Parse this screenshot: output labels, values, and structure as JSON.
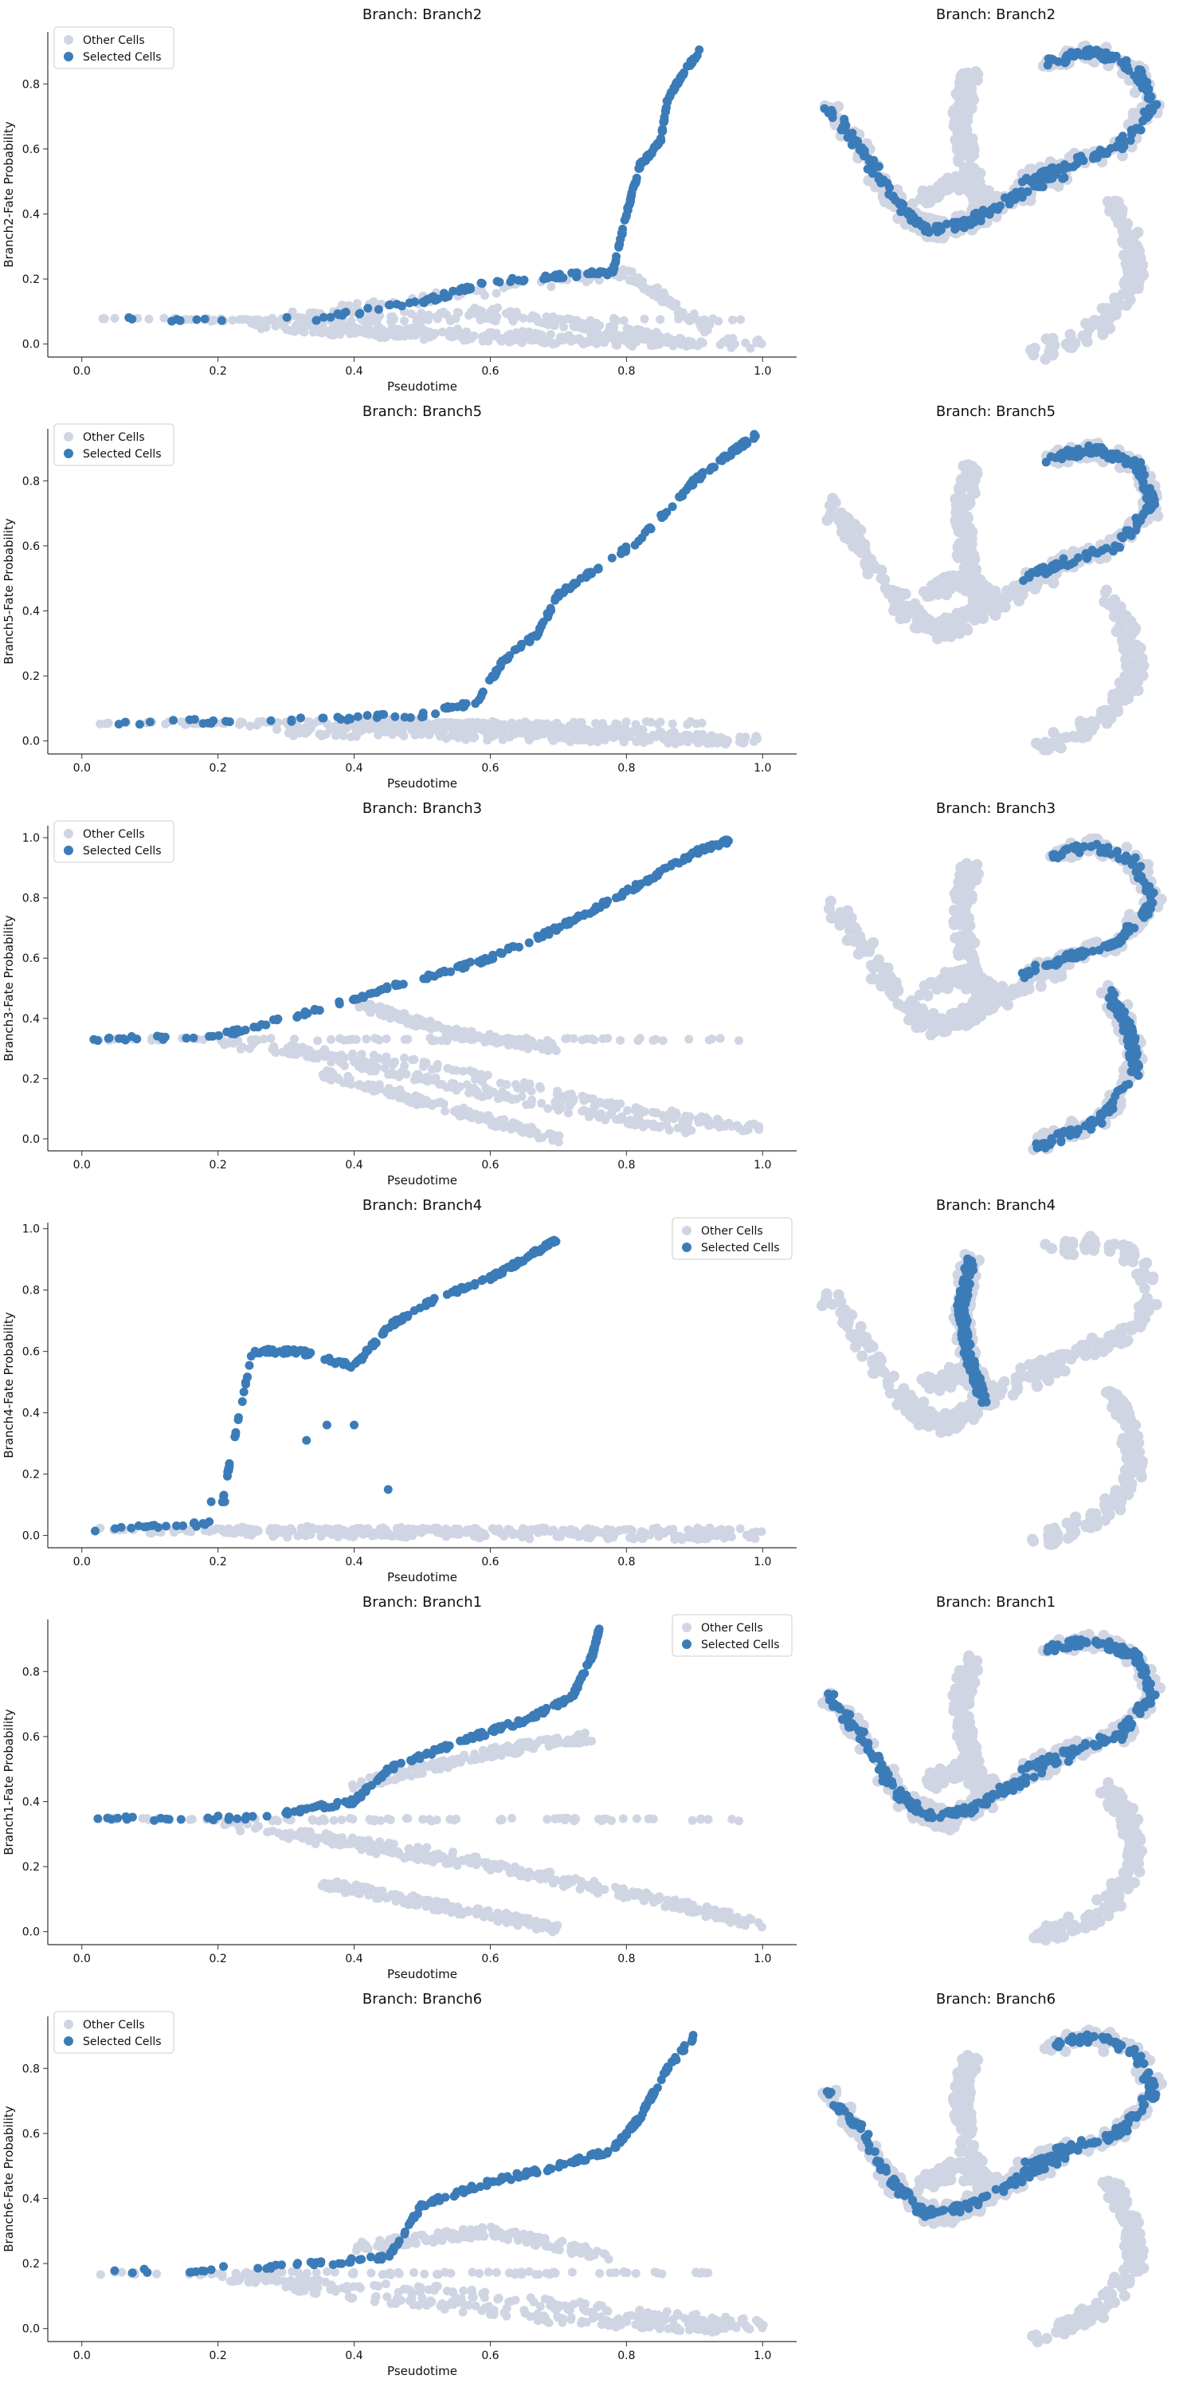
{
  "colors": {
    "other": "#d0d5e3",
    "selected": "#3b7cb8",
    "axis": "#333333",
    "text": "#111111"
  },
  "legend_labels": [
    "Other Cells",
    "Selected Cells"
  ],
  "chart_data": [
    {
      "type": "scatter",
      "title": "Branch: Branch2",
      "xlabel": "Pseudotime",
      "ylabel": "Branch2-Fate Probability",
      "xlim": [
        -0.05,
        1.05
      ],
      "ylim": [
        -0.04,
        0.96
      ],
      "xticks": [
        {
          "v": 0,
          "label": "0.0"
        },
        {
          "v": 0.2,
          "label": "0.2"
        },
        {
          "v": 0.4,
          "label": "0.4"
        },
        {
          "v": 0.6,
          "label": "0.6"
        },
        {
          "v": 0.8,
          "label": "0.8"
        },
        {
          "v": 1.0,
          "label": "1.0"
        }
      ],
      "yticks": [
        {
          "v": 0,
          "label": "0.0"
        },
        {
          "v": 0.2,
          "label": "0.2"
        },
        {
          "v": 0.4,
          "label": "0.4"
        },
        {
          "v": 0.6,
          "label": "0.6"
        },
        {
          "v": 0.8,
          "label": "0.8"
        }
      ],
      "legend": "upper-left",
      "grid": false,
      "base": 0.075,
      "other_tracks": [
        [
          [
            0.25,
            0.07
          ],
          [
            0.8,
            0.22
          ],
          [
            0.92,
            0.05
          ]
        ],
        [
          [
            0.25,
            0.06
          ],
          [
            0.6,
            0.1
          ],
          [
            0.85,
            0.02
          ]
        ],
        [
          [
            0.3,
            0.05
          ],
          [
            1.0,
            0.0
          ]
        ],
        [
          [
            0.35,
            0.04
          ],
          [
            0.9,
            0.0
          ]
        ]
      ],
      "selected_track": [
        [
          0.01,
          0.075
        ],
        [
          0.35,
          0.08
        ],
        [
          0.5,
          0.13
        ],
        [
          0.6,
          0.19
        ],
        [
          0.7,
          0.21
        ],
        [
          0.78,
          0.22
        ],
        [
          0.8,
          0.4
        ],
        [
          0.82,
          0.55
        ],
        [
          0.85,
          0.62
        ],
        [
          0.86,
          0.75
        ],
        [
          0.88,
          0.82
        ],
        [
          0.91,
          0.91
        ]
      ]
    },
    {
      "type": "scatter",
      "title": "Branch: Branch5",
      "xlabel": "Pseudotime",
      "ylabel": "Branch5-Fate Probability",
      "xlim": [
        -0.05,
        1.05
      ],
      "ylim": [
        -0.04,
        0.96
      ],
      "xticks": [
        {
          "v": 0,
          "label": "0.0"
        },
        {
          "v": 0.2,
          "label": "0.2"
        },
        {
          "v": 0.4,
          "label": "0.4"
        },
        {
          "v": 0.6,
          "label": "0.6"
        },
        {
          "v": 0.8,
          "label": "0.8"
        },
        {
          "v": 1.0,
          "label": "1.0"
        }
      ],
      "yticks": [
        {
          "v": 0,
          "label": "0.0"
        },
        {
          "v": 0.2,
          "label": "0.2"
        },
        {
          "v": 0.4,
          "label": "0.4"
        },
        {
          "v": 0.6,
          "label": "0.6"
        },
        {
          "v": 0.8,
          "label": "0.8"
        }
      ],
      "legend": "upper-left",
      "grid": false,
      "base": 0.055,
      "other_tracks": [
        [
          [
            0.25,
            0.05
          ],
          [
            0.7,
            0.04
          ],
          [
            0.95,
            0.0
          ]
        ],
        [
          [
            0.3,
            0.03
          ],
          [
            1.0,
            0.0
          ]
        ],
        [
          [
            0.4,
            0.06
          ],
          [
            0.8,
            0.02
          ]
        ]
      ],
      "selected_track": [
        [
          0.01,
          0.055
        ],
        [
          0.3,
          0.065
        ],
        [
          0.5,
          0.08
        ],
        [
          0.58,
          0.12
        ],
        [
          0.62,
          0.25
        ],
        [
          0.67,
          0.33
        ],
        [
          0.7,
          0.45
        ],
        [
          0.75,
          0.52
        ],
        [
          0.82,
          0.62
        ],
        [
          0.9,
          0.8
        ],
        [
          0.95,
          0.88
        ],
        [
          0.99,
          0.94
        ]
      ]
    },
    {
      "type": "scatter",
      "title": "Branch: Branch3",
      "xlabel": "Pseudotime",
      "ylabel": "Branch3-Fate Probability",
      "xlim": [
        -0.05,
        1.05
      ],
      "ylim": [
        -0.04,
        1.04
      ],
      "xticks": [
        {
          "v": 0,
          "label": "0.0"
        },
        {
          "v": 0.2,
          "label": "0.2"
        },
        {
          "v": 0.4,
          "label": "0.4"
        },
        {
          "v": 0.6,
          "label": "0.6"
        },
        {
          "v": 0.8,
          "label": "0.8"
        },
        {
          "v": 1.0,
          "label": "1.0"
        }
      ],
      "yticks": [
        {
          "v": 0,
          "label": "0.0"
        },
        {
          "v": 0.2,
          "label": "0.2"
        },
        {
          "v": 0.4,
          "label": "0.4"
        },
        {
          "v": 0.6,
          "label": "0.6"
        },
        {
          "v": 0.8,
          "label": "0.8"
        },
        {
          "v": 1.0,
          "label": "1.0"
        }
      ],
      "legend": "upper-left",
      "grid": false,
      "base": 0.33,
      "other_tracks": [
        [
          [
            0.2,
            0.32
          ],
          [
            0.5,
            0.25
          ],
          [
            0.8,
            0.1
          ],
          [
            1.0,
            0.03
          ]
        ],
        [
          [
            0.3,
            0.3
          ],
          [
            0.6,
            0.15
          ],
          [
            0.9,
            0.02
          ]
        ],
        [
          [
            0.35,
            0.22
          ],
          [
            0.7,
            0.0
          ]
        ],
        [
          [
            0.4,
            0.45
          ],
          [
            0.55,
            0.35
          ],
          [
            0.7,
            0.3
          ]
        ]
      ],
      "selected_track": [
        [
          0.01,
          0.33
        ],
        [
          0.2,
          0.34
        ],
        [
          0.3,
          0.4
        ],
        [
          0.45,
          0.5
        ],
        [
          0.6,
          0.6
        ],
        [
          0.7,
          0.7
        ],
        [
          0.8,
          0.82
        ],
        [
          0.9,
          0.95
        ],
        [
          0.95,
          0.99
        ]
      ]
    },
    {
      "type": "scatter",
      "title": "Branch: Branch4",
      "xlabel": "Pseudotime",
      "ylabel": "Branch4-Fate Probability",
      "xlim": [
        -0.05,
        1.05
      ],
      "ylim": [
        -0.04,
        1.02
      ],
      "xticks": [
        {
          "v": 0,
          "label": "0.0"
        },
        {
          "v": 0.2,
          "label": "0.2"
        },
        {
          "v": 0.4,
          "label": "0.4"
        },
        {
          "v": 0.6,
          "label": "0.6"
        },
        {
          "v": 0.8,
          "label": "0.8"
        },
        {
          "v": 1.0,
          "label": "1.0"
        }
      ],
      "yticks": [
        {
          "v": 0,
          "label": "0.0"
        },
        {
          "v": 0.2,
          "label": "0.2"
        },
        {
          "v": 0.4,
          "label": "0.4"
        },
        {
          "v": 0.6,
          "label": "0.6"
        },
        {
          "v": 0.8,
          "label": "0.8"
        },
        {
          "v": 1.0,
          "label": "1.0"
        }
      ],
      "legend": "upper-right",
      "grid": false,
      "base": 0.02,
      "other_tracks": [
        [
          [
            0.1,
            0.02
          ],
          [
            1.0,
            0.0
          ]
        ],
        [
          [
            0.2,
            0.01
          ],
          [
            0.95,
            0.0
          ]
        ]
      ],
      "selected_track": [
        [
          0.01,
          0.02
        ],
        [
          0.2,
          0.04
        ],
        [
          0.25,
          0.6
        ],
        [
          0.32,
          0.6
        ],
        [
          0.4,
          0.55
        ],
        [
          0.45,
          0.68
        ],
        [
          0.5,
          0.75
        ],
        [
          0.6,
          0.84
        ],
        [
          0.65,
          0.9
        ],
        [
          0.7,
          0.97
        ]
      ],
      "selected_extra": [
        [
          0.33,
          0.31
        ],
        [
          0.36,
          0.36
        ],
        [
          0.4,
          0.36
        ],
        [
          0.45,
          0.15
        ],
        [
          0.19,
          0.11
        ],
        [
          0.21,
          0.11
        ]
      ]
    },
    {
      "type": "scatter",
      "title": "Branch: Branch1",
      "xlabel": "Pseudotime",
      "ylabel": "Branch1-Fate Probability",
      "xlim": [
        -0.05,
        1.05
      ],
      "ylim": [
        -0.04,
        0.96
      ],
      "xticks": [
        {
          "v": 0,
          "label": "0.0"
        },
        {
          "v": 0.2,
          "label": "0.2"
        },
        {
          "v": 0.4,
          "label": "0.4"
        },
        {
          "v": 0.6,
          "label": "0.6"
        },
        {
          "v": 0.8,
          "label": "0.8"
        },
        {
          "v": 1.0,
          "label": "1.0"
        }
      ],
      "yticks": [
        {
          "v": 0,
          "label": "0.0"
        },
        {
          "v": 0.2,
          "label": "0.2"
        },
        {
          "v": 0.4,
          "label": "0.4"
        },
        {
          "v": 0.6,
          "label": "0.6"
        },
        {
          "v": 0.8,
          "label": "0.8"
        }
      ],
      "legend": "upper-right",
      "grid": false,
      "base": 0.345,
      "other_tracks": [
        [
          [
            0.2,
            0.33
          ],
          [
            0.5,
            0.25
          ],
          [
            0.8,
            0.12
          ],
          [
            1.0,
            0.02
          ]
        ],
        [
          [
            0.3,
            0.3
          ],
          [
            0.6,
            0.2
          ],
          [
            0.95,
            0.05
          ]
        ],
        [
          [
            0.35,
            0.15
          ],
          [
            0.7,
            0.01
          ]
        ],
        [
          [
            0.4,
            0.45
          ],
          [
            0.6,
            0.55
          ],
          [
            0.75,
            0.6
          ]
        ]
      ],
      "selected_track": [
        [
          0.01,
          0.345
        ],
        [
          0.25,
          0.35
        ],
        [
          0.4,
          0.4
        ],
        [
          0.45,
          0.5
        ],
        [
          0.55,
          0.58
        ],
        [
          0.65,
          0.65
        ],
        [
          0.72,
          0.72
        ],
        [
          0.75,
          0.85
        ],
        [
          0.76,
          0.93
        ]
      ]
    },
    {
      "type": "scatter",
      "title": "Branch: Branch6",
      "xlabel": "Pseudotime",
      "ylabel": "Branch6-Fate Probability",
      "xlim": [
        -0.05,
        1.05
      ],
      "ylim": [
        -0.04,
        0.96
      ],
      "xticks": [
        {
          "v": 0,
          "label": "0.0"
        },
        {
          "v": 0.2,
          "label": "0.2"
        },
        {
          "v": 0.4,
          "label": "0.4"
        },
        {
          "v": 0.6,
          "label": "0.6"
        },
        {
          "v": 0.8,
          "label": "0.8"
        },
        {
          "v": 1.0,
          "label": "1.0"
        }
      ],
      "yticks": [
        {
          "v": 0,
          "label": "0.0"
        },
        {
          "v": 0.2,
          "label": "0.2"
        },
        {
          "v": 0.4,
          "label": "0.4"
        },
        {
          "v": 0.6,
          "label": "0.6"
        },
        {
          "v": 0.8,
          "label": "0.8"
        }
      ],
      "legend": "upper-left",
      "grid": false,
      "base": 0.17,
      "other_tracks": [
        [
          [
            0.2,
            0.16
          ],
          [
            0.5,
            0.12
          ],
          [
            0.8,
            0.05
          ],
          [
            1.0,
            0.01
          ]
        ],
        [
          [
            0.3,
            0.13
          ],
          [
            0.7,
            0.03
          ],
          [
            0.95,
            0.0
          ]
        ],
        [
          [
            0.4,
            0.25
          ],
          [
            0.6,
            0.3
          ],
          [
            0.78,
            0.22
          ]
        ]
      ],
      "selected_track": [
        [
          0.01,
          0.17
        ],
        [
          0.3,
          0.19
        ],
        [
          0.45,
          0.22
        ],
        [
          0.5,
          0.38
        ],
        [
          0.6,
          0.45
        ],
        [
          0.7,
          0.5
        ],
        [
          0.78,
          0.55
        ],
        [
          0.82,
          0.65
        ],
        [
          0.86,
          0.8
        ],
        [
          0.9,
          0.9
        ]
      ]
    }
  ],
  "umap_panels": [
    {
      "title": "Branch: Branch2",
      "highlight": "branch2"
    },
    {
      "title": "Branch: Branch5",
      "highlight": "branch5"
    },
    {
      "title": "Branch: Branch3",
      "highlight": "branch3"
    },
    {
      "title": "Branch: Branch4",
      "highlight": "branch4"
    },
    {
      "title": "Branch: Branch1",
      "highlight": "branch1"
    },
    {
      "title": "Branch: Branch6",
      "highlight": "branch6"
    }
  ]
}
